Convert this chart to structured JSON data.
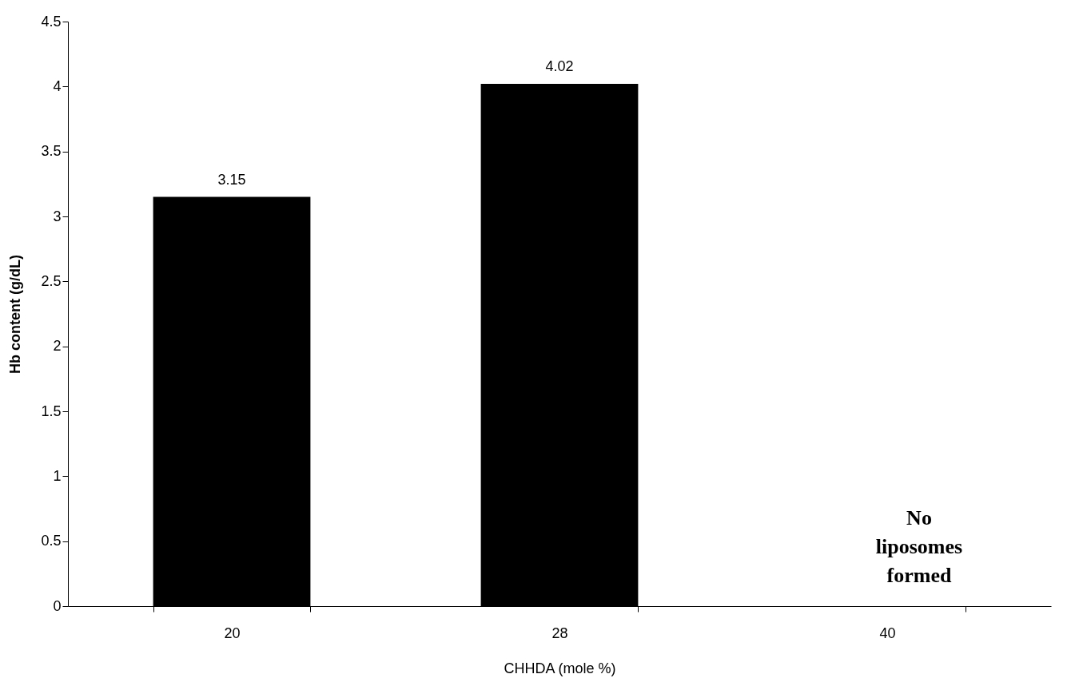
{
  "chart_data": {
    "type": "bar",
    "xlabel": "CHHDA (mole %)",
    "ylabel": "Hb content (g/dL)",
    "categories": [
      "20",
      "28",
      "40"
    ],
    "values": [
      3.15,
      4.02,
      null
    ],
    "color": "#000000",
    "ylim": [
      0,
      4.5
    ],
    "yticks": [
      0,
      0.5,
      1,
      1.5,
      2,
      2.5,
      3,
      3.5,
      4,
      4.5
    ],
    "data_labels": true,
    "grid": false,
    "annotations": [
      "No liposomes formed"
    ]
  }
}
